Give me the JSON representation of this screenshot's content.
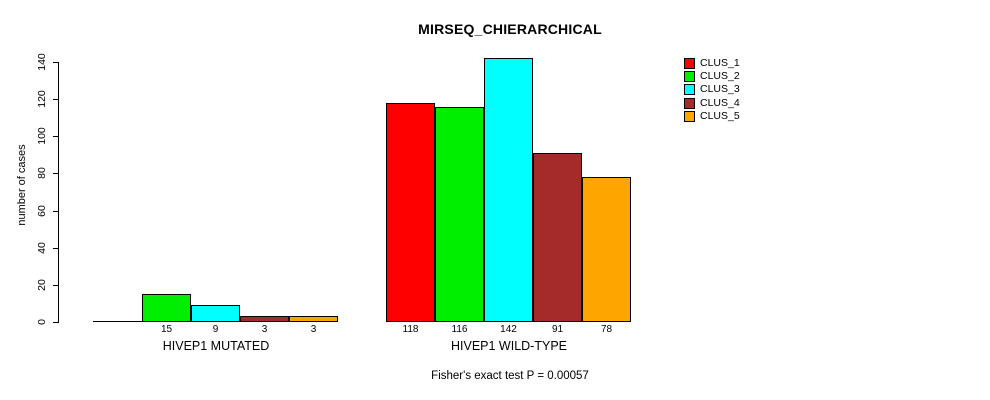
{
  "chart_data": {
    "type": "bar",
    "title": "MIRSEQ_CHIERARCHICAL",
    "xlabel": "",
    "ylabel": "number of cases",
    "ylim": [
      0,
      147
    ],
    "yticks": [
      0,
      20,
      40,
      60,
      80,
      100,
      120,
      140
    ],
    "grid": false,
    "categories": [
      "HIVEP1 MUTATED",
      "HIVEP1 WILD-TYPE"
    ],
    "series": [
      {
        "name": "CLUS_1",
        "color": "#FF0000",
        "values": [
          0,
          118
        ]
      },
      {
        "name": "CLUS_2",
        "color": "#00EE00",
        "values": [
          15,
          116
        ]
      },
      {
        "name": "CLUS_3",
        "color": "#00FFFF",
        "values": [
          9,
          142
        ]
      },
      {
        "name": "CLUS_4",
        "color": "#A52A2A",
        "values": [
          3,
          91
        ]
      },
      {
        "name": "CLUS_5",
        "color": "#FFA500",
        "values": [
          3,
          78
        ]
      }
    ],
    "bar_labels": [
      [
        "",
        "15",
        "9",
        "3",
        "3"
      ],
      [
        "118",
        "116",
        "142",
        "91",
        "78"
      ]
    ],
    "legend": {
      "position": "topright"
    },
    "annotation": "Fisher's exact test P = 0.00057"
  }
}
